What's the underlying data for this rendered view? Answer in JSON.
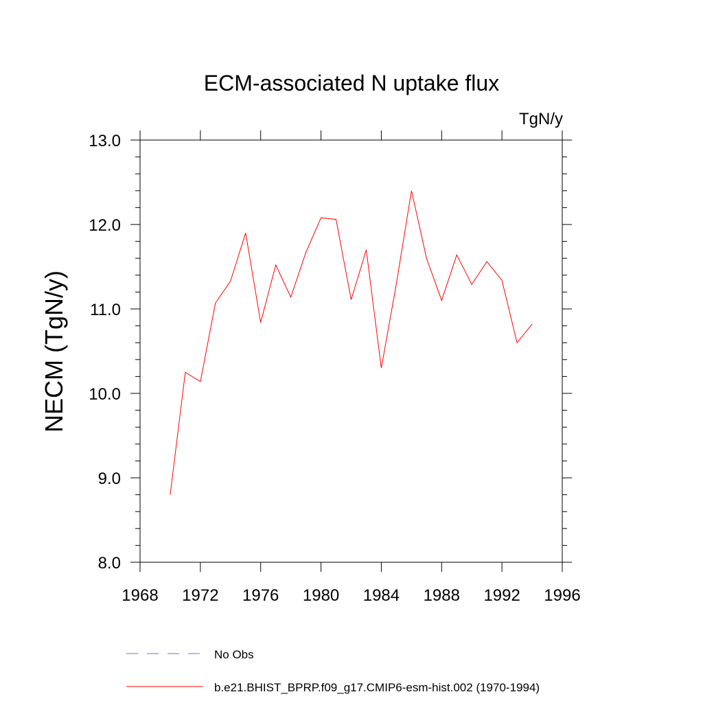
{
  "chart_data": {
    "type": "line",
    "title": "ECM-associated N uptake flux",
    "units_label": "TgN/y",
    "ylabel": "NECM  (TgN/y)",
    "xlabel": "",
    "xlim": [
      1968,
      1996
    ],
    "ylim": [
      8.0,
      13.0
    ],
    "x_ticks": [
      1968,
      1972,
      1976,
      1980,
      1984,
      1988,
      1992,
      1996
    ],
    "x_tick_labels": [
      "1968",
      "1972",
      "1976",
      "1980",
      "1984",
      "1988",
      "1992",
      "1996"
    ],
    "y_ticks": [
      8.0,
      9.0,
      10.0,
      11.0,
      12.0,
      13.0
    ],
    "y_tick_labels": [
      "8.0",
      "9.0",
      "10.0",
      "11.0",
      "12.0",
      "13.0"
    ],
    "grid": false,
    "legend_position": "bottom",
    "series": [
      {
        "name": "No Obs",
        "color": "#7b68c8",
        "dash": "dashed",
        "x": [],
        "y": []
      },
      {
        "name": "b.e21.BHIST_BPRP.f09_g17.CMIP6-esm-hist.002 (1970-1994)",
        "color": "#ff0000",
        "dash": "solid",
        "x": [
          1970,
          1971,
          1972,
          1973,
          1974,
          1975,
          1976,
          1977,
          1978,
          1979,
          1980,
          1981,
          1982,
          1983,
          1984,
          1985,
          1986,
          1987,
          1988,
          1989,
          1990,
          1991,
          1992,
          1993,
          1994
        ],
        "y": [
          8.8,
          10.25,
          10.14,
          11.07,
          11.33,
          11.9,
          10.84,
          11.52,
          11.14,
          11.67,
          12.08,
          12.06,
          11.11,
          11.7,
          10.3,
          11.3,
          12.4,
          11.6,
          11.1,
          11.64,
          11.29,
          11.56,
          11.34,
          10.6,
          10.82
        ]
      }
    ]
  }
}
